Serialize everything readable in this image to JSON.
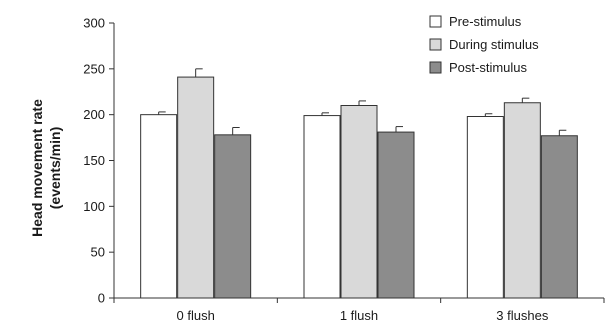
{
  "chart_data": {
    "type": "bar",
    "ylabel_line1": "Head movement rate",
    "ylabel_line2": "(events/min)",
    "xlabel": "",
    "ylim": [
      0,
      300
    ],
    "yticks": [
      0,
      50,
      100,
      150,
      200,
      250,
      300
    ],
    "categories": [
      "0 flush",
      "1 flush",
      "3 flushes"
    ],
    "series": [
      {
        "name": "Pre-stimulus",
        "color": "#ffffff",
        "values": [
          200,
          199,
          198
        ],
        "errors": [
          3,
          3,
          3
        ]
      },
      {
        "name": "During stimulus",
        "color": "#d9d9d9",
        "values": [
          241,
          210,
          213
        ],
        "errors": [
          9,
          5,
          5
        ]
      },
      {
        "name": "Post-stimulus",
        "color": "#8c8c8c",
        "values": [
          178,
          181,
          177
        ],
        "errors": [
          8,
          6,
          6
        ]
      }
    ],
    "legend_position": "top-right",
    "grid": false
  }
}
